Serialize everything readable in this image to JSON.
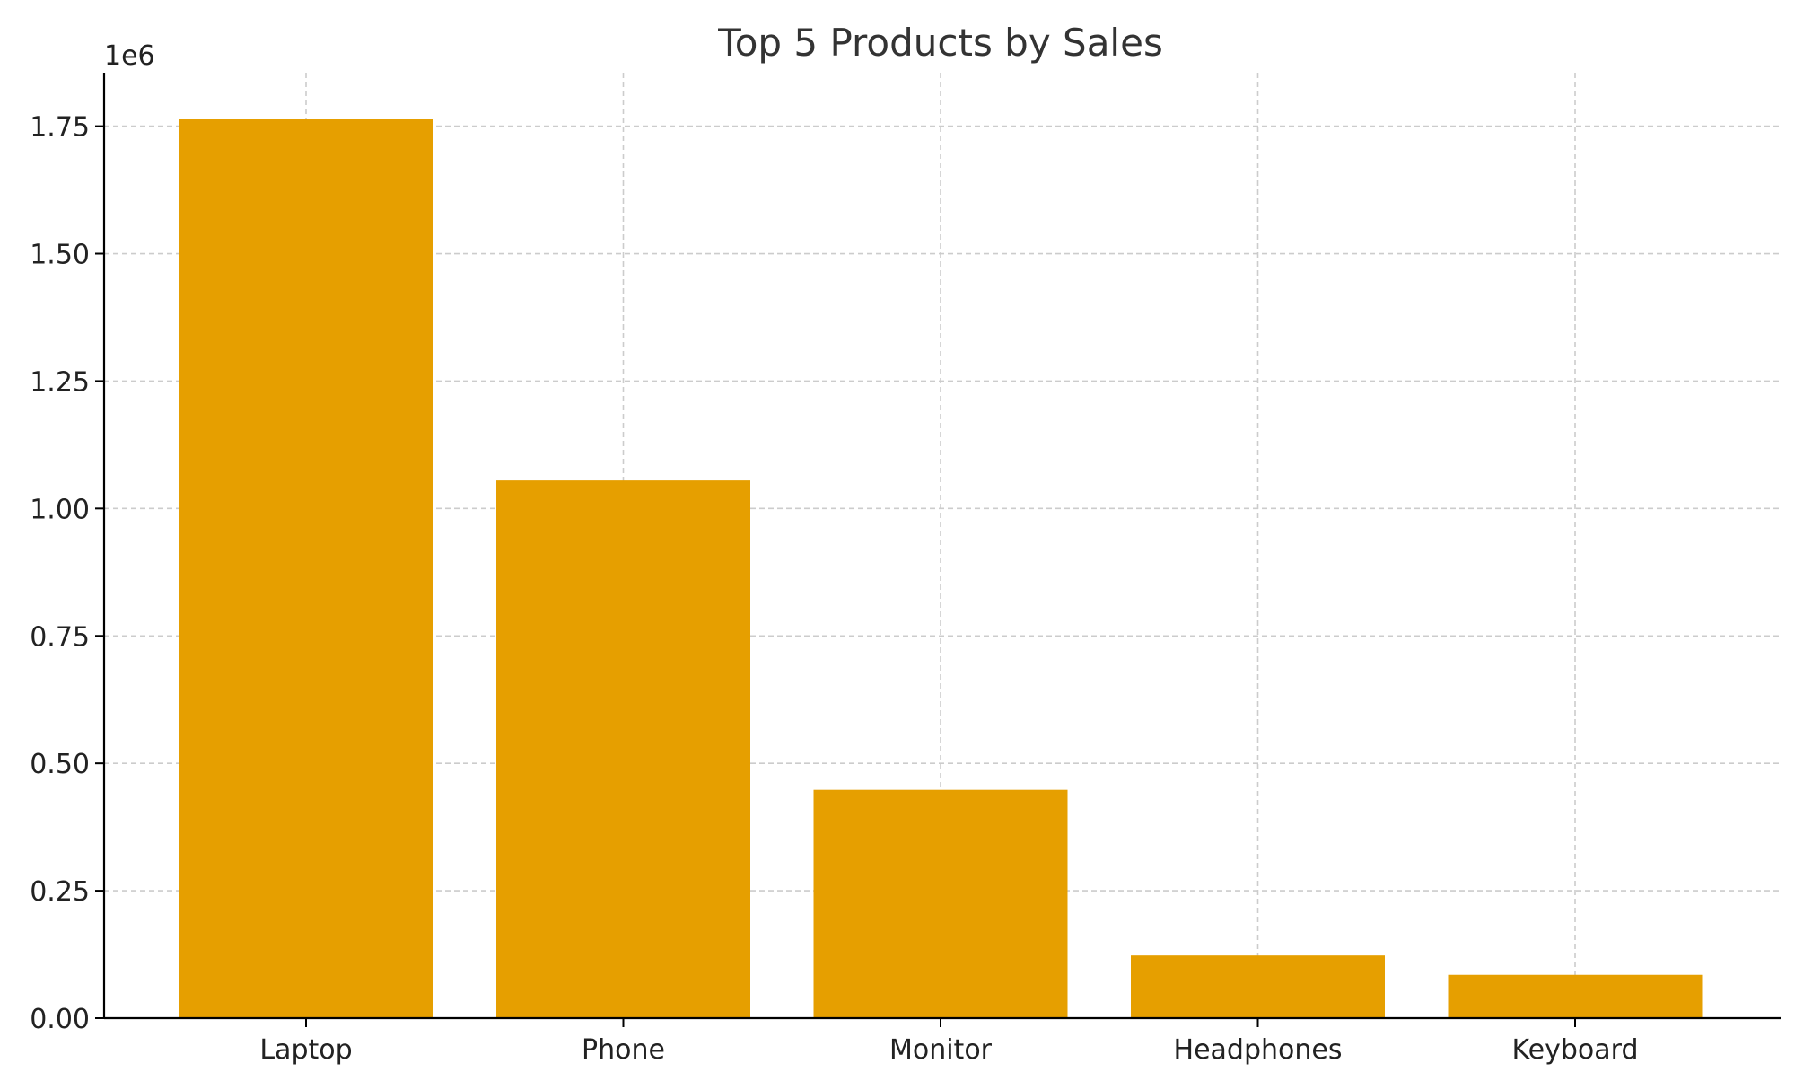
{
  "chart_data": {
    "type": "bar",
    "title": "Top 5 Products by Sales",
    "xlabel": "",
    "ylabel": "",
    "categories": [
      "Laptop",
      "Phone",
      "Monitor",
      "Headphones",
      "Keyboard"
    ],
    "values": [
      1765000,
      1055000,
      448000,
      123000,
      85000
    ],
    "ylim": [
      0,
      1855000
    ],
    "yticks": [
      0,
      250000,
      500000,
      750000,
      1000000,
      1250000,
      1500000,
      1750000
    ],
    "ytick_labels": [
      "0.00",
      "0.25",
      "0.50",
      "0.75",
      "1.00",
      "1.25",
      "1.50",
      "1.75"
    ],
    "y_offset_label": "1e6",
    "grid": true,
    "bar_color": "#E69F00",
    "grid_color": "#cccccc",
    "axis_color": "#000000",
    "text_color": "#333333"
  }
}
